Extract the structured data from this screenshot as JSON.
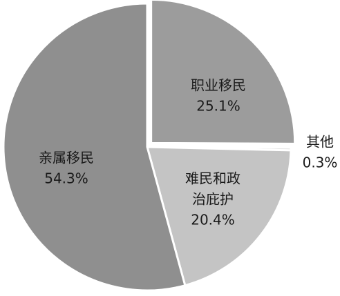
{
  "chart_data": {
    "type": "pie",
    "slices": [
      {
        "name": "职业移民",
        "value": 25.1,
        "value_label": "25.1%",
        "color": "#9c9c9c",
        "name_lines": [
          "职业移民"
        ]
      },
      {
        "name": "其他",
        "value": 0.3,
        "value_label": "0.3%",
        "color": "#d4d4d4",
        "name_lines": [
          "其他"
        ]
      },
      {
        "name": "难民和政治庇护",
        "value": 20.4,
        "value_label": "20.4%",
        "color": "#c4c4c4",
        "name_lines": [
          "难民和政",
          "治庇护"
        ]
      },
      {
        "name": "亲属移民",
        "value": 54.3,
        "value_label": "54.3%",
        "color": "#8f8f8f",
        "name_lines": [
          "亲属移民"
        ]
      }
    ],
    "stroke_color": "#ffffff",
    "legend": "none"
  }
}
